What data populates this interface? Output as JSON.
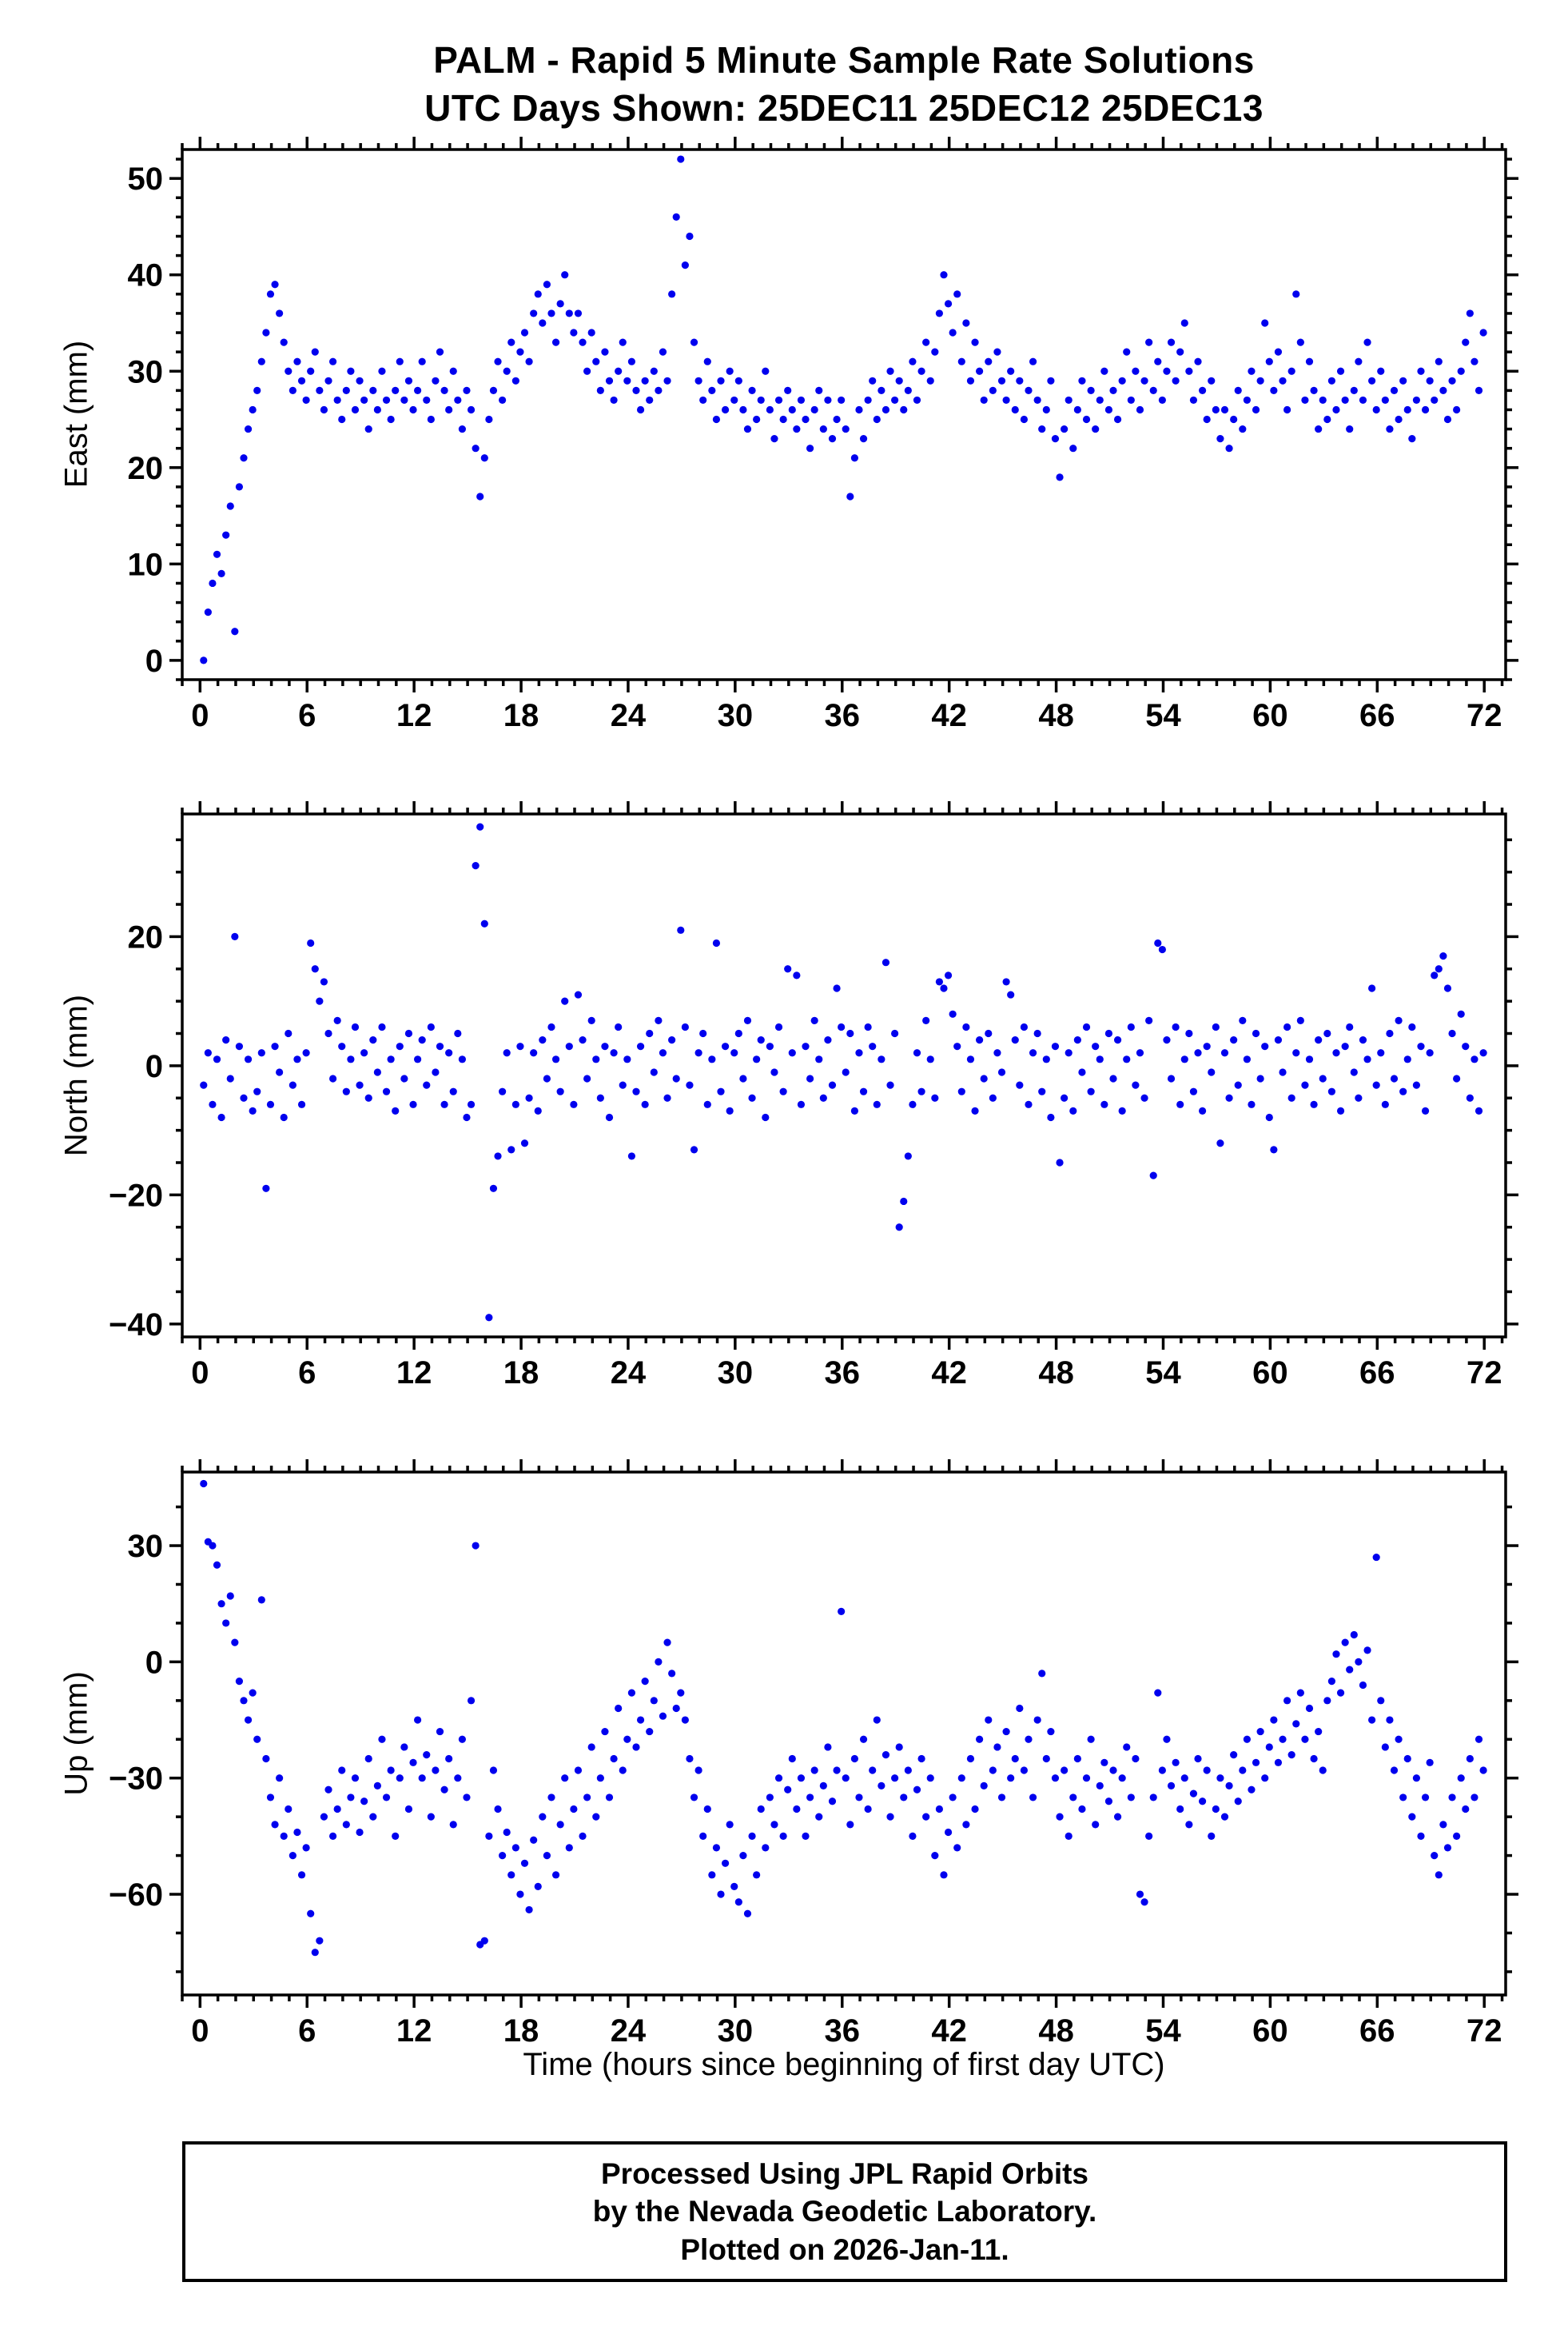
{
  "header": {
    "title_line1": "PALM - Rapid 5 Minute Sample Rate Solutions",
    "title_line2": "UTC Days Shown:  25DEC11 25DEC12 25DEC13"
  },
  "footer": {
    "line1": "Processed Using JPL Rapid Orbits",
    "line2": "by the Nevada Geodetic Laboratory.",
    "line3": "Plotted on 2026-Jan-11."
  },
  "chart_data": {
    "type": "scatter",
    "title": "PALM - Rapid 5 Minute Sample Rate Solutions",
    "subtitle": "UTC Days Shown:  25DEC11 25DEC12 25DEC13",
    "xlabel": "Time (hours since beginning of first day UTC)",
    "xlim": [
      -1,
      73.2
    ],
    "xticks": [
      0,
      6,
      12,
      18,
      24,
      30,
      36,
      42,
      48,
      54,
      60,
      66,
      72
    ],
    "xminor": 1,
    "marker": {
      "color": "#0000ee",
      "radius": 4.6
    },
    "panels": [
      {
        "name": "east",
        "ylabel": "East (mm)",
        "ylim": [
          -2,
          53
        ],
        "yticks": [
          0,
          10,
          20,
          30,
          40,
          50
        ],
        "yminor": 2,
        "points": {
          "x0": 0.2,
          "dx": 0.25,
          "y": [
            0,
            5,
            8,
            11,
            9,
            13,
            16,
            3,
            18,
            21,
            24,
            26,
            28,
            31,
            34,
            38,
            39,
            36,
            33,
            30,
            28,
            31,
            29,
            27,
            30,
            32,
            28,
            26,
            29,
            31,
            27,
            25,
            28,
            30,
            26,
            29,
            27,
            24,
            28,
            26,
            30,
            27,
            25,
            28,
            31,
            27,
            29,
            26,
            28,
            31,
            27,
            25,
            29,
            32,
            28,
            26,
            30,
            27,
            24,
            28,
            26,
            22,
            17,
            21,
            25,
            28,
            31,
            27,
            30,
            33,
            29,
            32,
            34,
            31,
            36,
            38,
            35,
            39,
            36,
            33,
            37,
            40,
            36,
            34,
            36,
            33,
            30,
            34,
            31,
            28,
            32,
            29,
            27,
            30,
            33,
            29,
            31,
            28,
            26,
            29,
            27,
            30,
            28,
            32,
            29,
            38,
            46,
            52,
            41,
            44,
            33,
            29,
            27,
            31,
            28,
            25,
            29,
            26,
            30,
            27,
            29,
            26,
            24,
            28,
            25,
            27,
            30,
            26,
            23,
            27,
            25,
            28,
            26,
            24,
            27,
            25,
            22,
            26,
            28,
            24,
            27,
            23,
            25,
            27,
            24,
            17,
            21,
            26,
            23,
            27,
            29,
            25,
            28,
            26,
            30,
            27,
            29,
            26,
            28,
            31,
            27,
            30,
            33,
            29,
            32,
            36,
            40,
            37,
            34,
            38,
            31,
            35,
            29,
            33,
            30,
            27,
            31,
            28,
            32,
            29,
            27,
            30,
            26,
            29,
            25,
            28,
            31,
            27,
            24,
            26,
            29,
            23,
            19,
            24,
            27,
            22,
            26,
            29,
            25,
            28,
            24,
            27,
            30,
            26,
            28,
            25,
            29,
            32,
            27,
            30,
            26,
            29,
            33,
            28,
            31,
            27,
            30,
            33,
            29,
            32,
            35,
            30,
            27,
            31,
            28,
            25,
            29,
            26,
            23,
            26,
            22,
            25,
            28,
            24,
            27,
            30,
            26,
            29,
            35,
            31,
            28,
            32,
            29,
            26,
            30,
            38,
            33,
            27,
            31,
            28,
            24,
            27,
            25,
            29,
            26,
            30,
            27,
            24,
            28,
            31,
            27,
            33,
            29,
            26,
            30,
            27,
            24,
            28,
            25,
            29,
            26,
            23,
            27,
            30,
            26,
            29,
            27,
            31,
            28,
            25,
            29,
            26,
            30,
            33,
            36,
            31,
            28,
            34
          ]
        }
      },
      {
        "name": "north",
        "ylabel": "North (mm)",
        "ylim": [
          -42,
          39
        ],
        "yticks": [
          -40,
          -20,
          0,
          20
        ],
        "yminor": 5,
        "points": {
          "x0": 0.2,
          "dx": 0.25,
          "y": [
            -3,
            2,
            -6,
            1,
            -8,
            4,
            -2,
            20,
            3,
            -5,
            1,
            -7,
            -4,
            2,
            -19,
            -6,
            3,
            -1,
            -8,
            5,
            -3,
            1,
            -6,
            2,
            19,
            15,
            10,
            13,
            5,
            -2,
            7,
            3,
            -4,
            1,
            6,
            -3,
            2,
            -5,
            4,
            -1,
            6,
            -4,
            1,
            -7,
            3,
            -2,
            5,
            -6,
            1,
            4,
            -3,
            6,
            -1,
            3,
            -6,
            2,
            -4,
            5,
            1,
            -8,
            -6,
            31,
            37,
            22,
            -39,
            -19,
            -14,
            -4,
            2,
            -13,
            -6,
            3,
            -12,
            -5,
            2,
            -7,
            4,
            -2,
            6,
            1,
            -4,
            10,
            3,
            -6,
            11,
            4,
            -2,
            7,
            1,
            -5,
            3,
            -8,
            2,
            6,
            -3,
            1,
            -14,
            -4,
            3,
            -6,
            5,
            -1,
            7,
            2,
            -5,
            4,
            -2,
            21,
            6,
            -3,
            -13,
            2,
            5,
            -6,
            1,
            19,
            -4,
            3,
            -7,
            2,
            5,
            -2,
            7,
            -5,
            1,
            4,
            -8,
            3,
            -1,
            6,
            -4,
            15,
            2,
            14,
            -6,
            3,
            -2,
            7,
            1,
            -5,
            4,
            -3,
            12,
            6,
            -1,
            5,
            -7,
            2,
            -4,
            6,
            3,
            -6,
            1,
            16,
            -3,
            5,
            -25,
            -21,
            -14,
            -6,
            2,
            -4,
            7,
            1,
            -5,
            13,
            12,
            14,
            8,
            3,
            -4,
            6,
            1,
            -7,
            4,
            -2,
            5,
            -5,
            2,
            -1,
            13,
            11,
            4,
            -3,
            6,
            -6,
            2,
            5,
            -4,
            1,
            -8,
            3,
            -15,
            -5,
            2,
            -7,
            4,
            -1,
            6,
            -4,
            3,
            1,
            -6,
            5,
            -2,
            4,
            -7,
            1,
            6,
            -3,
            2,
            -5,
            7,
            -17,
            19,
            18,
            4,
            -2,
            6,
            -6,
            1,
            5,
            -4,
            2,
            -7,
            3,
            -1,
            6,
            -12,
            2,
            -5,
            4,
            -3,
            7,
            1,
            -6,
            5,
            -2,
            3,
            -8,
            -13,
            4,
            -1,
            6,
            -5,
            2,
            7,
            -3,
            1,
            -6,
            4,
            -2,
            5,
            -4,
            2,
            -7,
            3,
            6,
            -1,
            -5,
            4,
            1,
            12,
            -3,
            2,
            -6,
            5,
            -2,
            7,
            -4,
            1,
            6,
            -3,
            3,
            -7,
            2,
            14,
            15,
            17,
            12,
            5,
            -2,
            8,
            3,
            -5,
            1,
            -7,
            2
          ]
        }
      },
      {
        "name": "up",
        "ylabel": "Up (mm)",
        "ylim": [
          -86,
          49
        ],
        "yticks": [
          -60,
          -30,
          0,
          30
        ],
        "yminor": 10,
        "points": {
          "x0": 0.2,
          "dx": 0.25,
          "y": [
            46,
            31,
            30,
            25,
            15,
            10,
            17,
            5,
            -5,
            -10,
            -15,
            -8,
            -20,
            16,
            -25,
            -35,
            -42,
            -30,
            -45,
            -38,
            -50,
            -44,
            -55,
            -48,
            -65,
            -75,
            -72,
            -40,
            -33,
            -45,
            -38,
            -28,
            -42,
            -35,
            -30,
            -44,
            -36,
            -25,
            -40,
            -32,
            -20,
            -35,
            -28,
            -45,
            -30,
            -22,
            -38,
            -26,
            -15,
            -30,
            -24,
            -40,
            -28,
            -18,
            -33,
            -25,
            -42,
            -30,
            -20,
            -35,
            -10,
            30,
            -73,
            -72,
            -45,
            -28,
            -38,
            -50,
            -44,
            -55,
            -48,
            -60,
            -52,
            -64,
            -46,
            -58,
            -40,
            -50,
            -35,
            -55,
            -42,
            -30,
            -48,
            -38,
            -28,
            -45,
            -35,
            -22,
            -40,
            -30,
            -18,
            -35,
            -25,
            -12,
            -28,
            -20,
            -8,
            -22,
            -15,
            -5,
            -18,
            -10,
            0,
            -14,
            5,
            -3,
            -12,
            -8,
            -15,
            -25,
            -35,
            -28,
            -45,
            -38,
            -55,
            -48,
            -60,
            -52,
            -42,
            -58,
            -62,
            -50,
            -65,
            -45,
            -55,
            -38,
            -48,
            -35,
            -42,
            -30,
            -45,
            -33,
            -25,
            -38,
            -30,
            -45,
            -35,
            -28,
            -40,
            -32,
            -22,
            -36,
            -28,
            13,
            -30,
            -42,
            -25,
            -35,
            -20,
            -38,
            -28,
            -15,
            -32,
            -24,
            -40,
            -30,
            -22,
            -35,
            -28,
            -45,
            -33,
            -25,
            -40,
            -30,
            -50,
            -38,
            -55,
            -44,
            -35,
            -48,
            -30,
            -42,
            -25,
            -38,
            -20,
            -32,
            -15,
            -28,
            -22,
            -35,
            -18,
            -30,
            -25,
            -12,
            -28,
            -20,
            -35,
            -15,
            -3,
            -25,
            -18,
            -30,
            -40,
            -28,
            -45,
            -35,
            -25,
            -38,
            -30,
            -20,
            -42,
            -32,
            -26,
            -36,
            -28,
            -40,
            -30,
            -22,
            -35,
            -25,
            -60,
            -62,
            -45,
            -35,
            -8,
            -28,
            -20,
            -32,
            -26,
            -38,
            -30,
            -42,
            -34,
            -25,
            -36,
            -28,
            -45,
            -38,
            -30,
            -40,
            -32,
            -24,
            -36,
            -28,
            -20,
            -33,
            -26,
            -18,
            -30,
            -22,
            -15,
            -26,
            -20,
            -10,
            -24,
            -16,
            -8,
            -20,
            -12,
            -25,
            -18,
            -28,
            -10,
            -5,
            2,
            -8,
            5,
            -2,
            7,
            0,
            -6,
            3,
            -15,
            27,
            -10,
            -22,
            -15,
            -28,
            -20,
            -35,
            -25,
            -40,
            -30,
            -45,
            -35,
            -26,
            -50,
            -55,
            -42,
            -48,
            -35,
            -45,
            -30,
            -38,
            -25,
            -35,
            -20,
            -28
          ]
        }
      }
    ]
  }
}
